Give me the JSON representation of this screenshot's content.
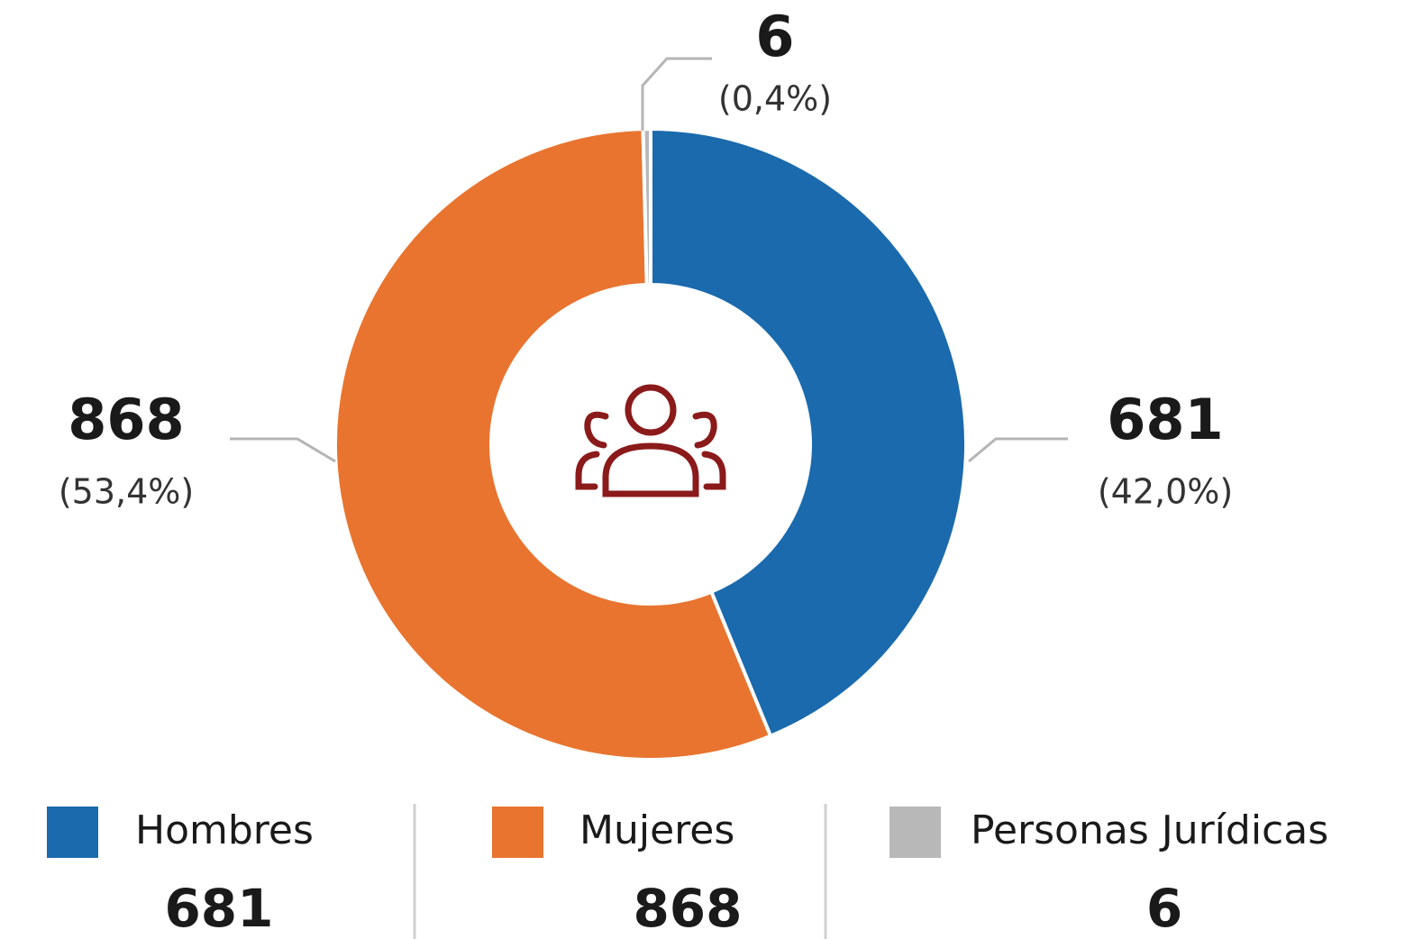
{
  "chart_data": {
    "type": "donut",
    "categories": [
      "Hombres",
      "Mujeres",
      "Personas Jurídicas"
    ],
    "values": [
      681,
      868,
      6
    ],
    "percent_values": [
      42.0,
      53.4,
      0.4
    ],
    "percent_labels": [
      "(42,0%)",
      "(53,4%)",
      "(0,4%)"
    ],
    "colors": [
      "#1a6aad",
      "#e8742f",
      "#b8b8b8"
    ],
    "legend": "bottom"
  }
}
